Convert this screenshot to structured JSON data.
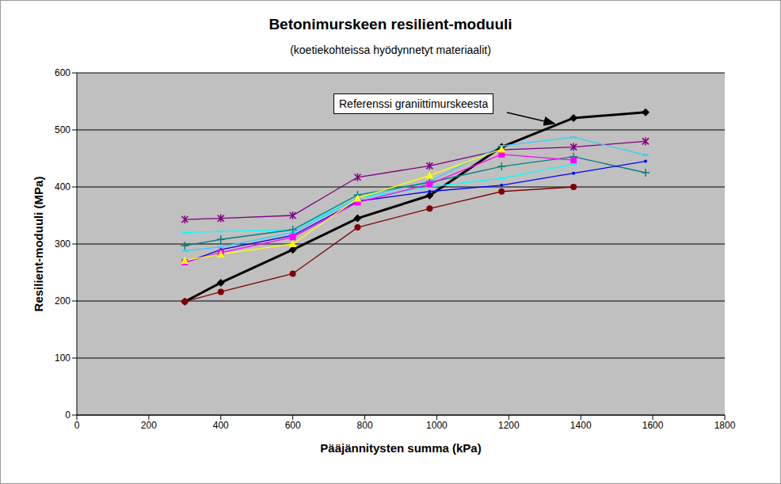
{
  "chart_data": {
    "type": "line",
    "title": "Betonimurskeen resilient-moduuli",
    "subtitle": "(koetiekohteissa hyödynnetyt materiaalit)",
    "x_label": "Pääjännitysten summa (kPa)",
    "y_label": "Resilient-moduuli (MPa)",
    "annotation": "Referenssi graniittimurskeesta",
    "x": [
      300,
      400,
      600,
      780,
      980,
      1180,
      1380,
      1580
    ],
    "series": [
      {
        "color": "#000000",
        "marker": "diamond",
        "values": [
          199,
          232,
          290,
          345,
          385,
          470,
          521,
          531
        ]
      },
      {
        "color": "#800000",
        "marker": "circle",
        "values": [
          199,
          216,
          248,
          329,
          362,
          392,
          400,
          null
        ]
      },
      {
        "color": "#800080",
        "marker": "star",
        "values": [
          343,
          345,
          350,
          417,
          437,
          465,
          470,
          480
        ]
      },
      {
        "color": "#00FFFF",
        "marker": "dash",
        "values": [
          320,
          322,
          325,
          380,
          400,
          415,
          440,
          null
        ]
      },
      {
        "color": "#33CCFF",
        "marker": "dash",
        "values": [
          288,
          295,
          320,
          380,
          410,
          472,
          487,
          456
        ]
      },
      {
        "color": "#008080",
        "marker": "plus",
        "values": [
          297,
          308,
          325,
          386,
          408,
          436,
          453,
          425
        ]
      },
      {
        "color": "#0000FF",
        "marker": "point",
        "values": [
          267,
          290,
          315,
          375,
          392,
          403,
          424,
          445
        ]
      },
      {
        "color": "#FF00FF",
        "marker": "square",
        "values": [
          268,
          285,
          312,
          373,
          405,
          457,
          447,
          null
        ]
      },
      {
        "color": "#FFFF00",
        "marker": "triangle",
        "values": [
          271,
          282,
          300,
          380,
          420,
          466,
          null,
          null
        ]
      }
    ],
    "xlim": [
      0,
      1800
    ],
    "xticks": [
      0,
      200,
      400,
      600,
      800,
      1000,
      1200,
      1400,
      1600,
      1800
    ],
    "ylim": [
      0,
      600
    ],
    "yticks": [
      0,
      100,
      200,
      300,
      400,
      500,
      600
    ],
    "grid": true
  }
}
